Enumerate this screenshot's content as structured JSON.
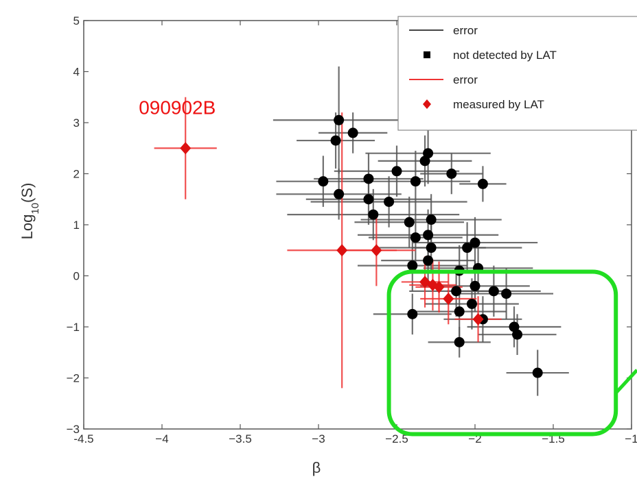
{
  "chart_data": {
    "type": "scatter",
    "title": "",
    "xlabel": "β",
    "ylabel": "Log10(S)",
    "xlim": [
      -4.5,
      -1
    ],
    "ylim": [
      -3,
      5
    ],
    "xticks": [
      {
        "v": -4.5,
        "label": "-4.5"
      },
      {
        "v": -4,
        "label": "−4"
      },
      {
        "v": -3.5,
        "label": "−3.5"
      },
      {
        "v": -3,
        "label": "−3"
      },
      {
        "v": -2.5,
        "label": "−2.5"
      },
      {
        "v": -2,
        "label": "−2"
      },
      {
        "v": -1.5,
        "label": "−1.5"
      },
      {
        "v": -1,
        "label": "−1"
      }
    ],
    "yticks": [
      {
        "v": -3,
        "label": "−3"
      },
      {
        "v": -2,
        "label": "−2"
      },
      {
        "v": -1,
        "label": "−1"
      },
      {
        "v": 0,
        "label": "0"
      },
      {
        "v": 1,
        "label": "1"
      },
      {
        "v": 2,
        "label": "2"
      },
      {
        "v": 3,
        "label": "3"
      },
      {
        "v": 4,
        "label": "4"
      },
      {
        "v": 5,
        "label": "5"
      }
    ],
    "legend_position": "top-right",
    "legend": [
      {
        "label": "error",
        "kind": "line",
        "color": "#444444"
      },
      {
        "label": "not detected by LAT",
        "kind": "square",
        "color": "#000000"
      },
      {
        "label": "error",
        "kind": "line",
        "color": "#ee3333"
      },
      {
        "label": "measured by LAT",
        "kind": "diamond",
        "color": "#dd1111"
      }
    ],
    "series": [
      {
        "name": "not detected by LAT",
        "color": "#000000",
        "errcolor": "#555555",
        "points": [
          {
            "x": -2.87,
            "y": 3.05,
            "xerr": 0.42,
            "yerr": 1.05
          },
          {
            "x": -2.89,
            "y": 2.65,
            "xerr": 0.25,
            "yerr": 0.55
          },
          {
            "x": -2.78,
            "y": 2.8,
            "xerr": 0.22,
            "yerr": 0.4
          },
          {
            "x": -2.97,
            "y": 1.85,
            "xerr": 0.3,
            "yerr": 0.5
          },
          {
            "x": -2.87,
            "y": 1.6,
            "xerr": 0.4,
            "yerr": 0.5
          },
          {
            "x": -2.68,
            "y": 1.9,
            "xerr": 0.35,
            "yerr": 0.5
          },
          {
            "x": -2.68,
            "y": 1.5,
            "xerr": 0.4,
            "yerr": 0.5
          },
          {
            "x": -2.65,
            "y": 1.2,
            "xerr": 0.55,
            "yerr": 0.5
          },
          {
            "x": -2.55,
            "y": 1.45,
            "xerr": 0.5,
            "yerr": 0.5
          },
          {
            "x": -2.5,
            "y": 2.05,
            "xerr": 0.4,
            "yerr": 0.5
          },
          {
            "x": -2.3,
            "y": 2.4,
            "xerr": 0.4,
            "yerr": 0.6
          },
          {
            "x": -2.32,
            "y": 2.25,
            "xerr": 0.3,
            "yerr": 0.5
          },
          {
            "x": -2.38,
            "y": 1.85,
            "xerr": 0.35,
            "yerr": 0.6
          },
          {
            "x": -2.28,
            "y": 1.1,
            "xerr": 0.45,
            "yerr": 0.5
          },
          {
            "x": -2.42,
            "y": 1.05,
            "xerr": 0.35,
            "yerr": 0.5
          },
          {
            "x": -2.38,
            "y": 0.75,
            "xerr": 0.3,
            "yerr": 0.5
          },
          {
            "x": -2.3,
            "y": 0.8,
            "xerr": 0.45,
            "yerr": 0.5
          },
          {
            "x": -2.28,
            "y": 0.55,
            "xerr": 0.35,
            "yerr": 0.5
          },
          {
            "x": -2.4,
            "y": 0.2,
            "xerr": 0.35,
            "yerr": 0.5
          },
          {
            "x": -2.3,
            "y": 0.3,
            "xerr": 0.3,
            "yerr": 0.5
          },
          {
            "x": -2.15,
            "y": 2.0,
            "xerr": 0.2,
            "yerr": 0.4
          },
          {
            "x": -1.95,
            "y": 1.8,
            "xerr": 0.15,
            "yerr": 0.35
          },
          {
            "x": -2.05,
            "y": 0.55,
            "xerr": 0.35,
            "yerr": 0.5
          },
          {
            "x": -2.0,
            "y": 0.65,
            "xerr": 0.4,
            "yerr": 0.5
          },
          {
            "x": -1.98,
            "y": 0.15,
            "xerr": 0.35,
            "yerr": 0.5
          },
          {
            "x": -2.1,
            "y": 0.1,
            "xerr": 0.3,
            "yerr": 0.5
          },
          {
            "x": -2.0,
            "y": -0.2,
            "xerr": 0.35,
            "yerr": 0.5
          },
          {
            "x": -2.12,
            "y": -0.3,
            "xerr": 0.3,
            "yerr": 0.5
          },
          {
            "x": -1.88,
            "y": -0.3,
            "xerr": 0.3,
            "yerr": 0.5
          },
          {
            "x": -1.8,
            "y": -0.35,
            "xerr": 0.3,
            "yerr": 0.5
          },
          {
            "x": -2.02,
            "y": -0.55,
            "xerr": 0.3,
            "yerr": 0.5
          },
          {
            "x": -2.1,
            "y": -0.7,
            "xerr": 0.3,
            "yerr": 0.5
          },
          {
            "x": -1.95,
            "y": -0.85,
            "xerr": 0.25,
            "yerr": 0.45
          },
          {
            "x": -2.4,
            "y": -0.75,
            "xerr": 0.25,
            "yerr": 0.4
          },
          {
            "x": -2.1,
            "y": -1.3,
            "xerr": 0.2,
            "yerr": 0.3
          },
          {
            "x": -1.75,
            "y": -1.0,
            "xerr": 0.3,
            "yerr": 0.4
          },
          {
            "x": -1.73,
            "y": -1.15,
            "xerr": 0.25,
            "yerr": 0.4
          },
          {
            "x": -1.6,
            "y": -1.9,
            "xerr": 0.2,
            "yerr": 0.45
          }
        ]
      },
      {
        "name": "measured by LAT",
        "color": "#dd1111",
        "errcolor": "#ee3333",
        "points": [
          {
            "x": -3.85,
            "y": 2.5,
            "xerr": 0.2,
            "yerr": 1.0
          },
          {
            "x": -2.85,
            "y": 0.5,
            "xerr": 0.35,
            "yerr": 2.7
          },
          {
            "x": -2.63,
            "y": 0.5,
            "xerr": 0.25,
            "yerr": 0.7
          },
          {
            "x": -2.32,
            "y": -0.12,
            "xerr": 0.15,
            "yerr": 0.5
          },
          {
            "x": -2.27,
            "y": -0.18,
            "xerr": 0.15,
            "yerr": 0.5
          },
          {
            "x": -2.23,
            "y": -0.22,
            "xerr": 0.15,
            "yerr": 0.5
          },
          {
            "x": -2.17,
            "y": -0.45,
            "xerr": 0.18,
            "yerr": 0.5
          },
          {
            "x": -1.98,
            "y": -0.85,
            "xerr": 0.15,
            "yerr": 0.45
          }
        ]
      }
    ],
    "annotations": [
      {
        "text": "090902B",
        "x": -3.85,
        "y": 3.3,
        "color": "#ee1111"
      }
    ],
    "highlight": {
      "x0": -2.55,
      "x1": -1.1,
      "y0": -3.1,
      "y1": 0.08,
      "color": "#22dd22"
    }
  }
}
